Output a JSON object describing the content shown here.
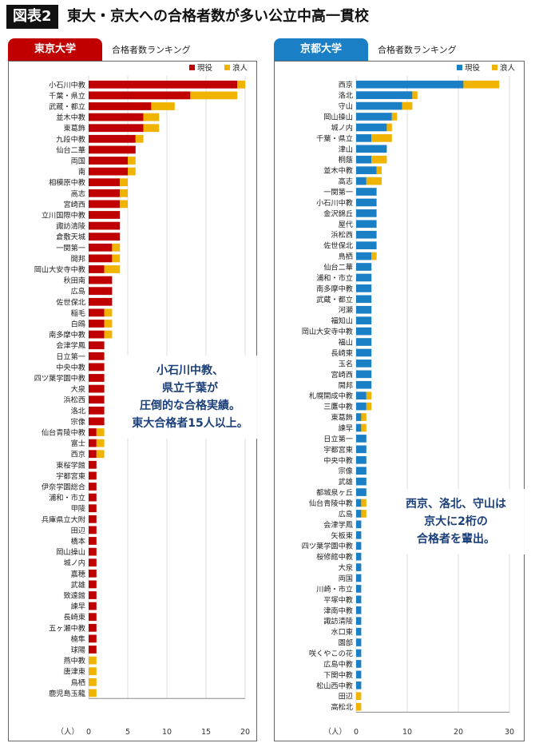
{
  "figure": {
    "label": "図表2",
    "title": "東大・京大への合格者数が多い公立中高一貫校"
  },
  "colors": {
    "current": "#c00000",
    "ronin": "#f0b400",
    "kyoto_current": "#1a7fc4",
    "tokyo_tab": "#c00000",
    "kyoto_tab": "#1a7fc4",
    "note_text": "#1a3f7a"
  },
  "panels": {
    "tokyo": {
      "tab_label": "東京大学",
      "subtitle": "合格者数ランキング",
      "note_lines": [
        "小石川中教、",
        "県立千葉が",
        "圧倒的な合格実績。",
        "東大合格者15人以上。"
      ]
    },
    "kyoto": {
      "tab_label": "京都大学",
      "subtitle": "合格者数ランキング",
      "note_lines": [
        "西京、洛北、守山は",
        "京大に2桁の",
        "合格者を輩出。"
      ]
    }
  },
  "chart_data": [
    {
      "type": "bar",
      "orientation": "horizontal",
      "stacked": true,
      "title": "東京大学",
      "subtitle": "合格者数ランキング",
      "xlabel": "（人）",
      "xlim": [
        0,
        20
      ],
      "xticks": [
        0,
        5,
        10,
        15,
        20
      ],
      "grid": true,
      "legend_position": "top-right",
      "categories": [
        "小石川中教",
        "千葉・県立",
        "武蔵・都立",
        "並木中教",
        "東葛飾",
        "九段中教",
        "仙台二華",
        "両国",
        "南",
        "相模原中教",
        "高志",
        "宮崎西",
        "立川国際中教",
        "諏訪清陵",
        "倉敷天城",
        "一関第一",
        "開邦",
        "岡山大安寺中教",
        "秋田南",
        "広島",
        "佐世保北",
        "稲毛",
        "白鴎",
        "南多摩中教",
        "会津学鳳",
        "日立第一",
        "中央中教",
        "四ツ葉学園中教",
        "大泉",
        "浜松西",
        "洛北",
        "宗像",
        "仙台青陵中教",
        "富士",
        "西京",
        "東桜学館",
        "宇都宮東",
        "伊奈学園総合",
        "浦和・市立",
        "甲陵",
        "兵庫県立大附",
        "田辺",
        "橋本",
        "岡山操山",
        "城ノ内",
        "嘉穂",
        "武雄",
        "致遠館",
        "諫早",
        "長崎東",
        "五ヶ瀬中教",
        "楠隼",
        "球陽",
        "燕中教",
        "唐津東",
        "鳥栖",
        "鹿児島玉龍"
      ],
      "series": [
        {
          "name": "現役",
          "values": [
            19,
            13,
            8,
            7,
            7,
            6,
            6,
            5,
            5,
            4,
            4,
            4,
            4,
            4,
            4,
            3,
            3,
            2,
            3,
            3,
            3,
            2,
            2,
            2,
            2,
            2,
            2,
            2,
            2,
            2,
            2,
            2,
            1,
            1,
            1,
            1,
            1,
            1,
            1,
            1,
            1,
            1,
            1,
            1,
            1,
            1,
            1,
            1,
            1,
            1,
            1,
            1,
            1,
            0,
            0,
            0,
            0
          ]
        },
        {
          "name": "浪人",
          "values": [
            1,
            6,
            3,
            2,
            2,
            1,
            0,
            1,
            1,
            1,
            1,
            1,
            0,
            0,
            0,
            1,
            1,
            2,
            0,
            0,
            0,
            1,
            1,
            1,
            0,
            0,
            0,
            0,
            0,
            0,
            0,
            0,
            1,
            1,
            1,
            0,
            0,
            0,
            0,
            0,
            0,
            0,
            0,
            0,
            0,
            0,
            0,
            0,
            0,
            0,
            0,
            0,
            0,
            1,
            1,
            1,
            1
          ]
        }
      ]
    },
    {
      "type": "bar",
      "orientation": "horizontal",
      "stacked": true,
      "title": "京都大学",
      "subtitle": "合格者数ランキング",
      "xlabel": "（人）",
      "xlim": [
        0,
        30
      ],
      "xticks": [
        0,
        10,
        20,
        30
      ],
      "grid": true,
      "legend_position": "top-right",
      "categories": [
        "西京",
        "洛北",
        "守山",
        "岡山操山",
        "城ノ内",
        "千葉・県立",
        "津山",
        "桐蔭",
        "並木中教",
        "高志",
        "一関第一",
        "小石川中教",
        "金沢錦丘",
        "屋代",
        "浜松西",
        "佐世保北",
        "鳥栖",
        "仙台二華",
        "浦和・市立",
        "南多摩中教",
        "武蔵・都立",
        "河瀬",
        "福知山",
        "岡山大安寺中教",
        "福山",
        "長崎東",
        "玉名",
        "宮崎西",
        "開邦",
        "札幌開成中教",
        "三鷹中教",
        "東葛飾",
        "諫早",
        "日立第一",
        "宇都宮東",
        "中央中教",
        "宗像",
        "武雄",
        "都城泉ヶ丘",
        "仙台青陵中教",
        "広島",
        "会津学鳳",
        "矢板東",
        "四ツ葉学園中教",
        "桜修館中教",
        "大泉",
        "両国",
        "川崎・市立",
        "平塚中教",
        "津南中教",
        "諏訪清陵",
        "水口東",
        "園部",
        "咲くやこの花",
        "広島中教",
        "下関中教",
        "松山西中教",
        "田辺",
        "高松北"
      ],
      "series": [
        {
          "name": "現役",
          "values": [
            21,
            11,
            9,
            7,
            6,
            3,
            6,
            3,
            4,
            2,
            4,
            4,
            4,
            4,
            4,
            4,
            3,
            3,
            3,
            3,
            3,
            3,
            3,
            3,
            3,
            3,
            3,
            3,
            3,
            2,
            2,
            1,
            1,
            2,
            2,
            2,
            2,
            2,
            2,
            1,
            1,
            1,
            1,
            1,
            1,
            1,
            1,
            1,
            1,
            1,
            1,
            1,
            1,
            1,
            1,
            1,
            1,
            0,
            0
          ]
        },
        {
          "name": "浪人",
          "values": [
            7,
            1,
            2,
            1,
            1,
            4,
            0,
            3,
            1,
            3,
            0,
            0,
            0,
            0,
            0,
            0,
            1,
            0,
            0,
            0,
            0,
            0,
            0,
            0,
            0,
            0,
            0,
            0,
            0,
            1,
            1,
            1,
            1,
            0,
            0,
            0,
            0,
            0,
            0,
            1,
            1,
            0,
            0,
            0,
            0,
            0,
            0,
            0,
            0,
            0,
            0,
            0,
            0,
            0,
            0,
            0,
            0,
            1,
            1
          ]
        }
      ]
    }
  ]
}
